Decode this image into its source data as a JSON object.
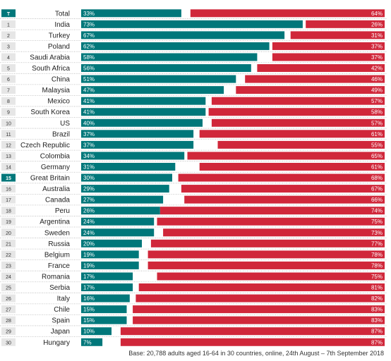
{
  "chart_data": {
    "type": "bar",
    "orientation": "horizontal",
    "stacked_diverging": true,
    "xlim": [
      0,
      100
    ],
    "grid": false,
    "legend": "none",
    "categories": [
      "Total",
      "India",
      "Turkey",
      "Poland",
      "Saudi Arabia",
      "South Africa",
      "China",
      "Malaysia",
      "Mexico",
      "South Korea",
      "US",
      "Brazil",
      "Czech Republic",
      "Colombia",
      "Germany",
      "Great Britain",
      "Australia",
      "Canada",
      "Peru",
      "Argentina",
      "Sweden",
      "Russia",
      "Belgium",
      "France",
      "Romania",
      "Serbia",
      "Italy",
      "Chile",
      "Spain",
      "Japan",
      "Hungary"
    ],
    "rank_labels": [
      "T",
      "1",
      "2",
      "3",
      "4",
      "5",
      "6",
      "7",
      "8",
      "9",
      "10",
      "11",
      "12",
      "13",
      "14",
      "15",
      "16",
      "17",
      "18",
      "19",
      "20",
      "21",
      "22",
      "23",
      "24",
      "25",
      "26",
      "27",
      "28",
      "29",
      "30"
    ],
    "highlight_ranks": [
      "T",
      "15"
    ],
    "series": [
      {
        "color": "#00777a",
        "values": [
          33,
          73,
          67,
          62,
          58,
          56,
          51,
          47,
          41,
          41,
          40,
          37,
          37,
          34,
          31,
          30,
          29,
          27,
          26,
          24,
          24,
          20,
          19,
          19,
          17,
          17,
          16,
          15,
          15,
          10,
          7
        ]
      },
      {
        "color": "#d0273a",
        "values": [
          64,
          26,
          31,
          37,
          37,
          42,
          46,
          49,
          57,
          58,
          57,
          61,
          55,
          65,
          61,
          68,
          67,
          66,
          74,
          75,
          73,
          77,
          78,
          78,
          75,
          81,
          82,
          83,
          83,
          87,
          87
        ]
      }
    ],
    "value_suffix": "%"
  },
  "footnote": "Base: 20,788 adults aged 16-64 in 30 countries, online, 24th August – 7th September 2018"
}
